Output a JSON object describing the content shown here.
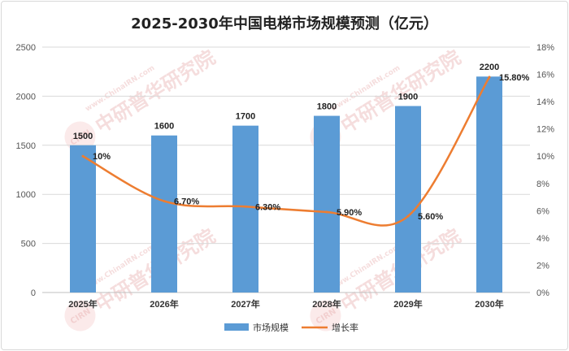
{
  "chart_data": {
    "type": "bar",
    "title": "2025-2030年中国电梯市场规模预测（亿元）",
    "categories": [
      "2025年",
      "2026年",
      "2027年",
      "2028年",
      "2029年",
      "2030年"
    ],
    "series": [
      {
        "name": "市场规模",
        "type": "bar",
        "axis": "left",
        "values": [
          1500,
          1600,
          1700,
          1800,
          1900,
          2200
        ],
        "labels": [
          "1500",
          "1600",
          "1700",
          "1800",
          "1900",
          "2200"
        ],
        "color": "#5b9bd5"
      },
      {
        "name": "增长率",
        "type": "line",
        "axis": "right",
        "smooth": true,
        "values": [
          10,
          6.7,
          6.3,
          5.9,
          5.6,
          15.8
        ],
        "labels": [
          "10%",
          "6.70%",
          "6.30%",
          "5.90%",
          "5.60%",
          "15.80%"
        ],
        "color": "#ed7d31"
      }
    ],
    "y_left": {
      "min": 0,
      "max": 2500,
      "ticks": [
        "0",
        "500",
        "1000",
        "1500",
        "2000",
        "2500"
      ]
    },
    "y_right": {
      "min": 0,
      "max": 18,
      "ticks": [
        "0%",
        "2%",
        "4%",
        "6%",
        "8%",
        "10%",
        "12%",
        "14%",
        "16%",
        "18%"
      ]
    },
    "grid": true,
    "legend": "bottom"
  },
  "watermark": {
    "text": "中研普华研究院",
    "url": "www.ChinaIRN.com",
    "badge": "CIRN"
  }
}
